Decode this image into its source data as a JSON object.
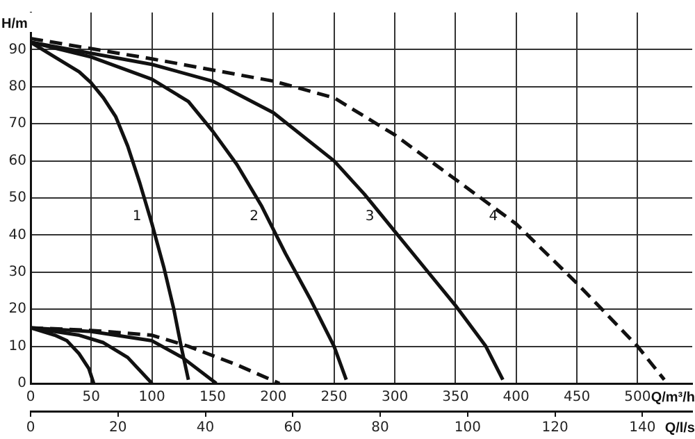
{
  "chart_data": {
    "type": "line",
    "xlabel": "Q/m³/h",
    "ylabel": "H/m",
    "x2label": "Q/l/s",
    "xlim": [
      0,
      545
    ],
    "xticks": [
      0,
      50,
      100,
      150,
      200,
      250,
      300,
      350,
      400,
      450,
      500
    ],
    "x2lim": [
      0,
      151.4
    ],
    "x2ticks": [
      0,
      20,
      40,
      60,
      80,
      100,
      120,
      140
    ],
    "ylim": [
      0,
      100
    ],
    "yticks": [
      0,
      10,
      20,
      30,
      40,
      50,
      60,
      70,
      80,
      90
    ],
    "grid": true,
    "legend": false,
    "series": [
      {
        "name": "1",
        "color": "#111111",
        "line_style": "solid",
        "x": [
          0,
          20,
          40,
          50,
          60,
          70,
          80,
          90,
          100,
          110,
          118,
          124,
          130
        ],
        "values": [
          92,
          88,
          84,
          81,
          77,
          72,
          64,
          54,
          43,
          31,
          20,
          10,
          1
        ]
      },
      {
        "name": "2",
        "color": "#111111",
        "line_style": "solid",
        "x": [
          0,
          50,
          100,
          130,
          150,
          170,
          190,
          210,
          230,
          250,
          260
        ],
        "values": [
          92,
          88,
          82,
          76,
          68,
          59,
          48,
          35,
          23,
          10,
          1
        ]
      },
      {
        "name": "3",
        "color": "#111111",
        "line_style": "solid",
        "x": [
          0,
          50,
          100,
          150,
          200,
          250,
          275,
          300,
          325,
          350,
          375,
          389
        ],
        "values": [
          92,
          89,
          86,
          81.5,
          73,
          60,
          51,
          41,
          31,
          21,
          10,
          1
        ]
      },
      {
        "name": "4",
        "color": "#111111",
        "line_style": "dashed",
        "x": [
          0,
          100,
          200,
          250,
          275,
          300,
          350,
          400,
          450,
          500,
          522
        ],
        "values": [
          93,
          87.5,
          81.5,
          77,
          72,
          67,
          55,
          43,
          27,
          10,
          1
        ]
      },
      {
        "color": "#111111",
        "line_style": "solid",
        "x": [
          0,
          20,
          30,
          40,
          48,
          52
        ],
        "values": [
          15,
          13,
          11.5,
          8,
          4,
          0
        ]
      },
      {
        "color": "#111111",
        "line_style": "solid",
        "x": [
          0,
          40,
          60,
          80,
          100
        ],
        "values": [
          15,
          13,
          11,
          7,
          0
        ]
      },
      {
        "color": "#111111",
        "line_style": "solid",
        "x": [
          0,
          50,
          100,
          125,
          153
        ],
        "values": [
          15,
          14,
          11.5,
          7,
          0
        ]
      },
      {
        "color": "#111111",
        "line_style": "dashed",
        "x": [
          0,
          50,
          100,
          130,
          170,
          205
        ],
        "values": [
          15,
          14.3,
          13,
          10,
          5,
          0
        ]
      }
    ]
  }
}
